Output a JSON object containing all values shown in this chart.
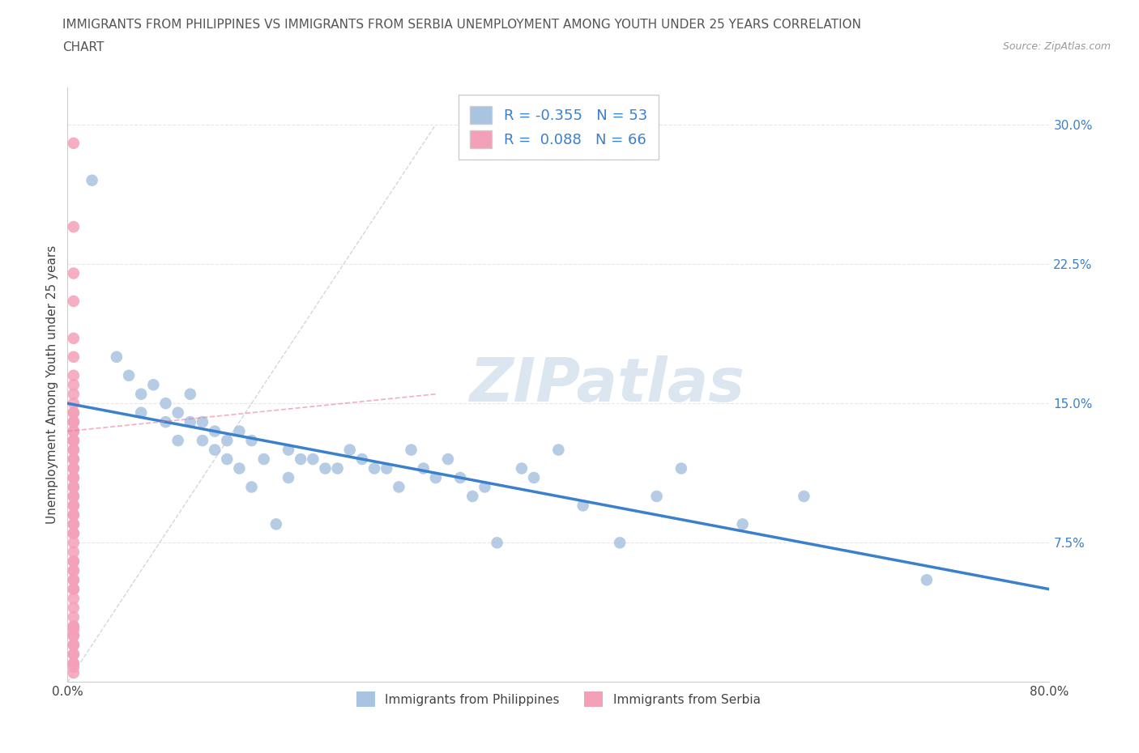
{
  "title_line1": "IMMIGRANTS FROM PHILIPPINES VS IMMIGRANTS FROM SERBIA UNEMPLOYMENT AMONG YOUTH UNDER 25 YEARS CORRELATION",
  "title_line2": "CHART",
  "source_text": "Source: ZipAtlas.com",
  "ylabel": "Unemployment Among Youth under 25 years",
  "xlim": [
    0.0,
    0.8
  ],
  "ylim": [
    0.0,
    0.32
  ],
  "xticks": [
    0.0,
    0.1,
    0.2,
    0.3,
    0.4,
    0.5,
    0.6,
    0.7,
    0.8
  ],
  "yticks_right": [
    0.0,
    0.075,
    0.15,
    0.225,
    0.3
  ],
  "r_philippines": -0.355,
  "n_philippines": 53,
  "r_serbia": 0.088,
  "n_serbia": 66,
  "philippines_color": "#a8c4e0",
  "serbia_color": "#f4a0b8",
  "trendline_philippines_color": "#3a80cc",
  "trendline_serbia_color": "#e87a9a",
  "diag_line_color": "#cccccc",
  "philippines_scatter_x": [
    0.02,
    0.04,
    0.05,
    0.06,
    0.06,
    0.07,
    0.08,
    0.08,
    0.09,
    0.09,
    0.1,
    0.1,
    0.11,
    0.11,
    0.12,
    0.12,
    0.13,
    0.13,
    0.14,
    0.14,
    0.15,
    0.15,
    0.16,
    0.17,
    0.18,
    0.18,
    0.19,
    0.2,
    0.21,
    0.22,
    0.23,
    0.24,
    0.25,
    0.26,
    0.27,
    0.28,
    0.29,
    0.3,
    0.31,
    0.32,
    0.33,
    0.34,
    0.35,
    0.37,
    0.38,
    0.4,
    0.42,
    0.45,
    0.48,
    0.5,
    0.55,
    0.6,
    0.7
  ],
  "philippines_scatter_y": [
    0.27,
    0.175,
    0.165,
    0.155,
    0.145,
    0.16,
    0.15,
    0.14,
    0.145,
    0.13,
    0.155,
    0.14,
    0.14,
    0.13,
    0.135,
    0.125,
    0.13,
    0.12,
    0.135,
    0.115,
    0.13,
    0.105,
    0.12,
    0.085,
    0.125,
    0.11,
    0.12,
    0.12,
    0.115,
    0.115,
    0.125,
    0.12,
    0.115,
    0.115,
    0.105,
    0.125,
    0.115,
    0.11,
    0.12,
    0.11,
    0.1,
    0.105,
    0.075,
    0.115,
    0.11,
    0.125,
    0.095,
    0.075,
    0.1,
    0.115,
    0.085,
    0.1,
    0.055
  ],
  "serbia_scatter_x": [
    0.005,
    0.005,
    0.005,
    0.005,
    0.005,
    0.005,
    0.005,
    0.005,
    0.005,
    0.005,
    0.005,
    0.005,
    0.005,
    0.005,
    0.005,
    0.005,
    0.005,
    0.005,
    0.005,
    0.005,
    0.005,
    0.005,
    0.005,
    0.005,
    0.005,
    0.005,
    0.005,
    0.005,
    0.005,
    0.005,
    0.005,
    0.005,
    0.005,
    0.005,
    0.005,
    0.005,
    0.005,
    0.005,
    0.005,
    0.005,
    0.005,
    0.005,
    0.005,
    0.005,
    0.005,
    0.005,
    0.005,
    0.005,
    0.005,
    0.005,
    0.005,
    0.005,
    0.005,
    0.005,
    0.005,
    0.005,
    0.005,
    0.005,
    0.005,
    0.005,
    0.005,
    0.005,
    0.005,
    0.005,
    0.005,
    0.005
  ],
  "serbia_scatter_y": [
    0.29,
    0.245,
    0.22,
    0.205,
    0.185,
    0.175,
    0.165,
    0.16,
    0.155,
    0.15,
    0.145,
    0.145,
    0.14,
    0.14,
    0.14,
    0.135,
    0.135,
    0.13,
    0.13,
    0.13,
    0.125,
    0.125,
    0.12,
    0.12,
    0.115,
    0.115,
    0.11,
    0.11,
    0.105,
    0.105,
    0.1,
    0.1,
    0.095,
    0.095,
    0.09,
    0.09,
    0.085,
    0.085,
    0.08,
    0.08,
    0.075,
    0.07,
    0.065,
    0.065,
    0.06,
    0.06,
    0.055,
    0.055,
    0.05,
    0.05,
    0.045,
    0.04,
    0.035,
    0.03,
    0.025,
    0.02,
    0.015,
    0.01,
    0.008,
    0.03,
    0.025,
    0.02,
    0.015,
    0.01,
    0.005,
    0.028
  ],
  "background_color": "#ffffff",
  "grid_color": "#e8e8e8",
  "watermark_text": "ZIPatlas",
  "watermark_color": "#dce6f0",
  "legend_text_color": "#3a80cc",
  "title_color": "#555555"
}
